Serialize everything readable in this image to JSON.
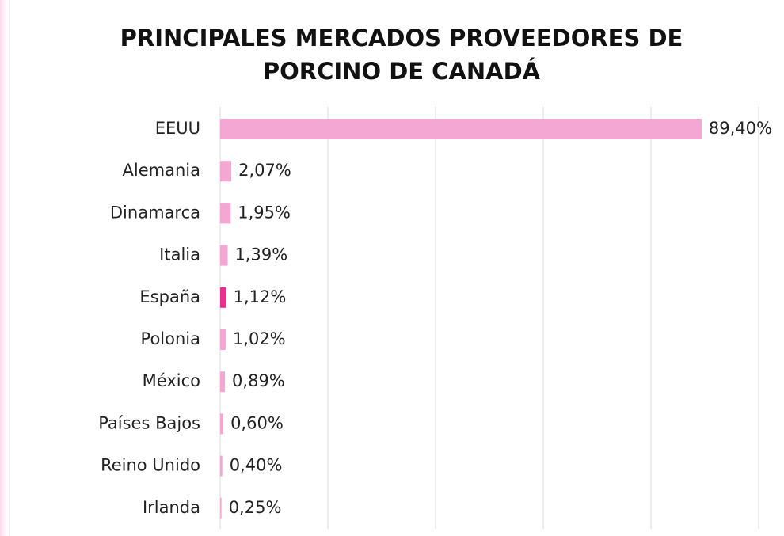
{
  "chart_data": {
    "type": "barh",
    "title": [
      "PRINCIPALES MERCADOS PROVEEDORES DE",
      "PORCINO DE CANADÁ"
    ],
    "categories": [
      "EEUU",
      "Alemania",
      "Dinamarca",
      "Italia",
      "España",
      "Polonia",
      "México",
      "Países Bajos",
      "Reino Unido",
      "Irlanda"
    ],
    "values": [
      89.4,
      2.07,
      1.95,
      1.39,
      1.12,
      1.02,
      0.89,
      0.6,
      0.4,
      0.25
    ],
    "value_labels": [
      "89,40%",
      "2,07%",
      "1,95%",
      "1,39%",
      "1,12%",
      "1,02%",
      "0,89%",
      "0,60%",
      "0,40%",
      "0,25%"
    ],
    "colors": [
      "#f4a7d3",
      "#f4a7d3",
      "#f4a7d3",
      "#f4a7d3",
      "#e8308f",
      "#f4a7d3",
      "#f4a7d3",
      "#f4a7d3",
      "#f4a7d3",
      "#f4a7d3"
    ],
    "xlim": [
      0,
      100
    ],
    "xticks": [
      0,
      20,
      40,
      60,
      80,
      100
    ],
    "grid": true
  }
}
